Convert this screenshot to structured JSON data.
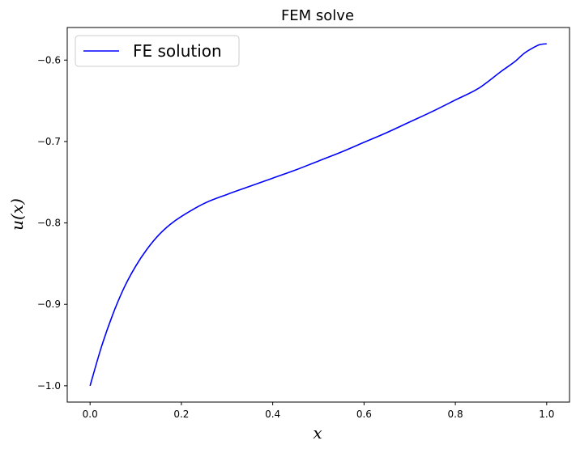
{
  "chart_data": {
    "type": "line",
    "title": "FEM solve",
    "xlabel": "x",
    "ylabel": "u(x)",
    "xlim": [
      -0.05,
      1.05
    ],
    "ylim": [
      -1.02,
      -0.56
    ],
    "xticks": [
      0.0,
      0.2,
      0.4,
      0.6,
      0.8,
      1.0
    ],
    "xtick_labels": [
      "0.0",
      "0.2",
      "0.4",
      "0.6",
      "0.8",
      "1.0"
    ],
    "yticks": [
      -1.0,
      -0.9,
      -0.8,
      -0.7,
      -0.6
    ],
    "ytick_labels": [
      "−1.0",
      "−0.9",
      "−0.8",
      "−0.7",
      "−0.6"
    ],
    "grid": false,
    "legend_position": "top-left",
    "series": [
      {
        "name": "FE solution",
        "color": "#0000ff",
        "x": [
          0.0,
          0.025,
          0.05,
          0.075,
          0.1,
          0.125,
          0.15,
          0.175,
          0.2,
          0.25,
          0.3,
          0.35,
          0.4,
          0.45,
          0.5,
          0.55,
          0.6,
          0.65,
          0.7,
          0.75,
          0.8,
          0.85,
          0.9,
          0.93,
          0.95,
          0.97,
          0.985,
          1.0
        ],
        "y": [
          -1.0,
          -0.952,
          -0.912,
          -0.879,
          -0.853,
          -0.832,
          -0.815,
          -0.802,
          -0.792,
          -0.776,
          -0.765,
          -0.755,
          -0.745,
          -0.735,
          -0.724,
          -0.713,
          -0.701,
          -0.689,
          -0.676,
          -0.663,
          -0.649,
          -0.635,
          -0.614,
          -0.602,
          -0.592,
          -0.585,
          -0.581,
          -0.58
        ]
      }
    ]
  }
}
